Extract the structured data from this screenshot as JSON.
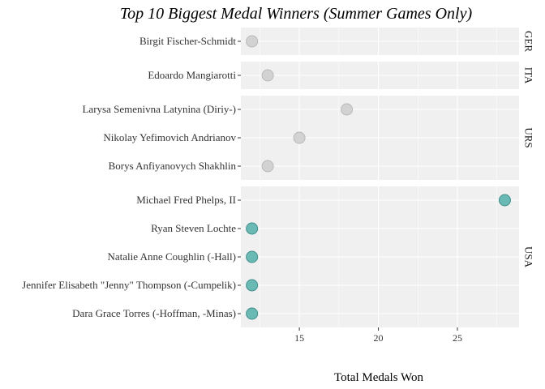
{
  "chart_data": {
    "type": "scatter",
    "title": "Top 10 Biggest Medal Winners (Summer Games Only)",
    "xlabel": "Total Medals Won",
    "ylabel": "",
    "xlim": [
      11.3,
      28.9
    ],
    "xticks": [
      15,
      20,
      25
    ],
    "grid": true,
    "legend": "none",
    "facet_by": "Country",
    "panels": [
      {
        "name": "GER",
        "athletes": [
          {
            "name": "Birgit Fischer-Schmidt",
            "medals": 12
          }
        ]
      },
      {
        "name": "ITA",
        "athletes": [
          {
            "name": "Edoardo Mangiarotti",
            "medals": 13
          }
        ]
      },
      {
        "name": "URS",
        "athletes": [
          {
            "name": "Larysa Semenivna Latynina (Diriy-)",
            "medals": 18
          },
          {
            "name": "Nikolay Yefimovich Andrianov",
            "medals": 15
          },
          {
            "name": "Borys Anfiyanovych Shakhlin",
            "medals": 13
          }
        ]
      },
      {
        "name": "USA",
        "athletes": [
          {
            "name": "Michael Fred Phelps, II",
            "medals": 28
          },
          {
            "name": "Ryan Steven Lochte",
            "medals": 12
          },
          {
            "name": "Natalie Anne Coughlin (-Hall)",
            "medals": 12
          },
          {
            "name": "Jennifer Elisabeth \"Jenny\" Thompson (-Cumpelik)",
            "medals": 12
          },
          {
            "name": "Dara Grace Torres (-Hoffman, -Minas)",
            "medals": 12
          }
        ]
      }
    ],
    "colors": {
      "highlight": "#5BB2AE",
      "highlight_stroke": "#3F8F8B",
      "muted": "#CCCCCC",
      "muted_stroke": "#B8B8B8",
      "panel_bg": "#F0F0F0",
      "grid": "#FFFFFF"
    },
    "highlight_panel": "USA"
  }
}
